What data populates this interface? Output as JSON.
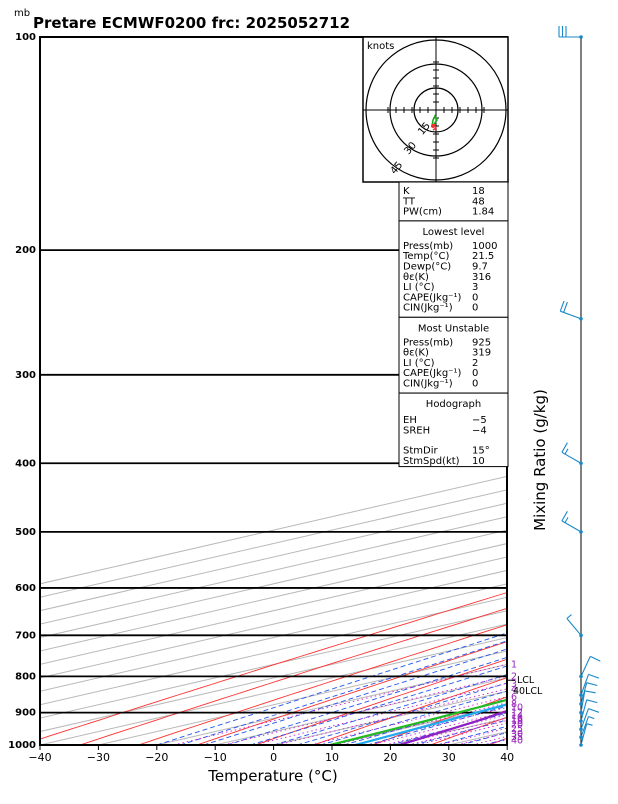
{
  "header": {
    "unit_label": "mb",
    "title": "Pretare ECMWF0200  frc: 2025052712"
  },
  "chart_data": {
    "type": "skew-t",
    "xlabel": "Temperature (°C)",
    "ylabel_right": "Mixing Ratio (g/kg)",
    "x_ticks": [
      -40,
      -30,
      -20,
      -10,
      0,
      10,
      20,
      30,
      40
    ],
    "pressure_ticks": [
      100,
      200,
      300,
      400,
      500,
      600,
      700,
      800,
      900,
      1000
    ],
    "major_isobars": [
      100,
      200,
      300,
      400,
      500,
      600,
      700,
      800,
      900,
      1000
    ],
    "xlim": [
      -40,
      40
    ],
    "plim": [
      1000,
      100
    ],
    "mixing_ratio_labels": [
      "1",
      "2",
      "3",
      "4",
      "6",
      "8",
      "10",
      "12",
      "14",
      "16",
      "18",
      "20",
      "25",
      "30",
      "35",
      "40"
    ],
    "series": [
      {
        "name": "Temperature",
        "color": "#ee3333",
        "points": [
          [
            1000,
            21.5
          ],
          [
            925,
            17
          ],
          [
            900,
            15
          ],
          [
            850,
            11.5
          ],
          [
            800,
            9.5
          ],
          [
            700,
            6
          ],
          [
            600,
            -2
          ],
          [
            500,
            -11
          ],
          [
            400,
            -22
          ],
          [
            300,
            -38
          ],
          [
            250,
            -48
          ],
          [
            200,
            -46
          ],
          [
            150,
            -42
          ],
          [
            100,
            -38
          ]
        ]
      },
      {
        "name": "Dewpoint",
        "color": "#22bb22",
        "points": [
          [
            1000,
            9.7
          ],
          [
            925,
            8.2
          ],
          [
            900,
            7.5
          ],
          [
            850,
            6
          ],
          [
            800,
            2
          ],
          [
            700,
            -14
          ],
          [
            600,
            -20
          ],
          [
            500,
            -45
          ],
          [
            400,
            -55
          ],
          [
            300,
            -65
          ],
          [
            250,
            -70
          ],
          [
            200,
            -72
          ],
          [
            150,
            -70
          ],
          [
            100,
            -66
          ]
        ]
      },
      {
        "name": "Parcel",
        "color": "#8822cc",
        "points": [
          [
            1000,
            21.5
          ],
          [
            925,
            17
          ],
          [
            860,
            11.8
          ],
          [
            800,
            9.5
          ],
          [
            700,
            4.8
          ],
          [
            600,
            -2
          ],
          [
            500,
            -11.5
          ],
          [
            400,
            -24
          ],
          [
            300,
            -41
          ],
          [
            200,
            -64
          ],
          [
            150,
            -78
          ],
          [
            100,
            -96
          ]
        ]
      },
      {
        "name": "Wet-bulb",
        "color": "#22aaee",
        "points": [
          [
            1000,
            14
          ],
          [
            925,
            11.5
          ],
          [
            850,
            8.8
          ],
          [
            800,
            7.6
          ],
          [
            700,
            3
          ],
          [
            600,
            -3.5
          ],
          [
            500,
            -13
          ],
          [
            400,
            -25
          ],
          [
            300,
            -42
          ],
          [
            200,
            -65
          ],
          [
            150,
            -80
          ],
          [
            100,
            -98
          ]
        ]
      }
    ],
    "levels": {
      "LCL": 810,
      "LFC_label": "LCL",
      "EL_label": "40LCL"
    },
    "winds": [
      {
        "p": 1000,
        "dir": 15,
        "spd": 5
      },
      {
        "p": 975,
        "dir": 20,
        "spd": 8
      },
      {
        "p": 950,
        "dir": 20,
        "spd": 10
      },
      {
        "p": 925,
        "dir": 15,
        "spd": 10
      },
      {
        "p": 900,
        "dir": 10,
        "spd": 10
      },
      {
        "p": 875,
        "dir": 15,
        "spd": 12
      },
      {
        "p": 850,
        "dir": 20,
        "spd": 10
      },
      {
        "p": 800,
        "dir": 25,
        "spd": 10
      },
      {
        "p": 700,
        "dir": 320,
        "spd": 8
      },
      {
        "p": 500,
        "dir": 300,
        "spd": 15
      },
      {
        "p": 400,
        "dir": 300,
        "spd": 15
      },
      {
        "p": 250,
        "dir": 290,
        "spd": 20
      },
      {
        "p": 100,
        "dir": 270,
        "spd": 30
      }
    ],
    "hodograph": {
      "units_label": "knots",
      "rings": [
        15,
        30,
        45
      ],
      "ring_labels": [
        "15",
        "30",
        "45"
      ]
    },
    "indices": [
      {
        "label": "K",
        "value": "18"
      },
      {
        "label": "TT",
        "value": "48"
      },
      {
        "label": "PW(cm)",
        "value": "1.84"
      }
    ],
    "lowest_level": {
      "heading": "Lowest level",
      "rows": [
        {
          "label": "Press(mb)",
          "value": "1000"
        },
        {
          "label": "Temp(°C)",
          "value": "21.5"
        },
        {
          "label": "Dewp(°C)",
          "value": "9.7"
        },
        {
          "label": "θε(K)",
          "value": "316"
        },
        {
          "label": "LI (°C)",
          "value": "3"
        },
        {
          "label": "CAPE(Jkg⁻¹)",
          "value": "0"
        },
        {
          "label": "CIN(Jkg⁻¹)",
          "value": "0"
        }
      ]
    },
    "most_unstable": {
      "heading": "Most Unstable",
      "rows": [
        {
          "label": "Press(mb)",
          "value": "925"
        },
        {
          "label": "θε(K)",
          "value": "319"
        },
        {
          "label": "LI (°C)",
          "value": "2"
        },
        {
          "label": "CAPE(Jkg⁻¹)",
          "value": "0"
        },
        {
          "label": "CIN(Jkg⁻¹)",
          "value": "0"
        }
      ]
    },
    "hodograph_table": {
      "heading": "Hodograph",
      "rows": [
        {
          "label": "EH",
          "value": "−5"
        },
        {
          "label": "SREH",
          "value": "−4"
        },
        {
          "label": "StmDir",
          "value": "15°"
        },
        {
          "label": "StmSpd(kt)",
          "value": "10"
        }
      ]
    }
  }
}
